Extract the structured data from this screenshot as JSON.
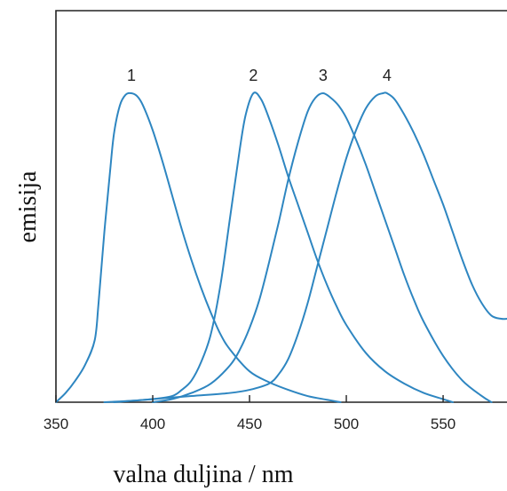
{
  "chart_data": {
    "type": "line",
    "title": "",
    "xlabel": "valna duljina / nm",
    "ylabel": "emisija",
    "xlim": [
      350,
      583
    ],
    "ylim": [
      0,
      1.05
    ],
    "xticks": [
      350,
      400,
      450,
      500,
      550
    ],
    "xtick_labels": [
      "350",
      "400",
      "450",
      "500",
      "550"
    ],
    "y_tick_labels_shown": false,
    "grid": false,
    "legend": "none",
    "line_color": "#2E86C1",
    "series": [
      {
        "label": "1",
        "peak_x": 389,
        "x": [
          350,
          355,
          360,
          365,
          370,
          372,
          375,
          378,
          380,
          383,
          386,
          389,
          392,
          395,
          400,
          405,
          410,
          415,
          420,
          425,
          430,
          435,
          440,
          450,
          460,
          470,
          480,
          490,
          497
        ],
        "y": [
          0.0,
          0.03,
          0.07,
          0.12,
          0.2,
          0.32,
          0.55,
          0.75,
          0.87,
          0.96,
          0.995,
          1.0,
          0.99,
          0.96,
          0.88,
          0.78,
          0.67,
          0.56,
          0.46,
          0.37,
          0.29,
          0.22,
          0.17,
          0.1,
          0.065,
          0.04,
          0.02,
          0.008,
          0.0
        ]
      },
      {
        "label": "2",
        "peak_x": 452,
        "x": [
          375,
          390,
          400,
          410,
          415,
          420,
          425,
          430,
          435,
          440,
          445,
          448,
          452,
          456,
          460,
          465,
          470,
          475,
          480,
          485,
          490,
          495,
          500,
          510,
          520,
          530,
          540,
          550,
          555
        ],
        "y": [
          0.0,
          0.005,
          0.01,
          0.02,
          0.04,
          0.07,
          0.13,
          0.22,
          0.38,
          0.6,
          0.82,
          0.93,
          1.0,
          0.98,
          0.92,
          0.83,
          0.73,
          0.64,
          0.55,
          0.46,
          0.38,
          0.31,
          0.25,
          0.16,
          0.1,
          0.06,
          0.03,
          0.01,
          0.0
        ]
      },
      {
        "label": "3",
        "peak_x": 488,
        "x": [
          400,
          410,
          420,
          430,
          440,
          445,
          450,
          455,
          460,
          465,
          470,
          475,
          480,
          484,
          488,
          492,
          496,
          500,
          505,
          510,
          515,
          520,
          525,
          530,
          535,
          540,
          550,
          560,
          570,
          575
        ],
        "y": [
          0.0,
          0.01,
          0.03,
          0.06,
          0.12,
          0.17,
          0.24,
          0.33,
          0.45,
          0.58,
          0.72,
          0.84,
          0.94,
          0.985,
          1.0,
          0.985,
          0.96,
          0.92,
          0.85,
          0.77,
          0.68,
          0.59,
          0.5,
          0.41,
          0.33,
          0.26,
          0.15,
          0.07,
          0.02,
          0.0
        ]
      },
      {
        "label": "4",
        "peak_x": 521,
        "x": [
          380,
          400,
          420,
          440,
          450,
          460,
          465,
          470,
          475,
          480,
          485,
          490,
          495,
          500,
          505,
          510,
          515,
          519,
          521,
          525,
          530,
          535,
          540,
          545,
          550,
          555,
          560,
          565,
          570,
          575,
          580,
          583
        ],
        "y": [
          0.0,
          0.01,
          0.02,
          0.03,
          0.04,
          0.06,
          0.09,
          0.14,
          0.22,
          0.32,
          0.44,
          0.56,
          0.68,
          0.79,
          0.88,
          0.95,
          0.99,
          1.0,
          1.0,
          0.98,
          0.93,
          0.87,
          0.8,
          0.72,
          0.64,
          0.55,
          0.46,
          0.38,
          0.32,
          0.28,
          0.27,
          0.27
        ]
      }
    ]
  }
}
